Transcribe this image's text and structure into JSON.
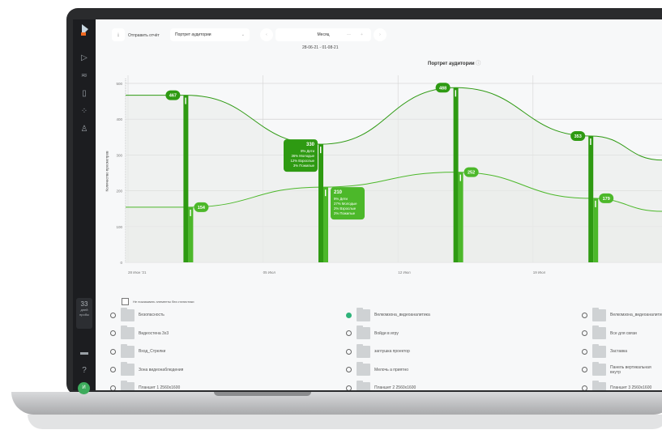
{
  "sidebar": {
    "icons": [
      "logo-icon",
      "play-icon",
      "filter-icon",
      "file-icon",
      "loader-icon",
      "user-icon",
      "monitor-icon",
      "help-icon"
    ],
    "trial_days": "33",
    "trial_label_1": "дней",
    "trial_label_2": "пробы",
    "avatar": "И"
  },
  "toolbar": {
    "send_report": "Отправить отчёт",
    "report_select": "Портрет аудитории",
    "period": "Месяц",
    "date_range": "28-06-21 - 01-08-21"
  },
  "chart_data": {
    "type": "line",
    "title": "Портрет аудитории",
    "ylabel": "Количество просмотров",
    "xlabel": "",
    "ylim": [
      0,
      500
    ],
    "yticks": [
      "0",
      "100",
      "200",
      "300",
      "400",
      "500"
    ],
    "xticks": [
      {
        "date": "2021-06-28",
        "label": "28 Июн '21"
      },
      {
        "date": "2021-07-05",
        "label": "05 Июл"
      },
      {
        "date": "2021-07-12",
        "label": "12 Июл"
      },
      {
        "date": "2021-07-19",
        "label": "19 Июл"
      }
    ],
    "grid": true,
    "series": [
      {
        "color": "#2e9a12",
        "x": [
          "2021-07-01",
          "2021-07-08",
          "2021-07-15",
          "2021-07-22"
        ],
        "values": [
          467,
          330,
          488,
          353
        ]
      },
      {
        "color": "#4cb82a",
        "x": [
          "2021-07-01",
          "2021-07-08",
          "2021-07-15",
          "2021-07-22"
        ],
        "values": [
          154,
          210,
          252,
          179
        ]
      }
    ],
    "tooltips": [
      {
        "series": 0,
        "point": 1,
        "value": "330",
        "lines": [
          "8% Дети",
          "36% Молодые",
          "12% Взрослые",
          "3% Пожилые"
        ]
      },
      {
        "series": 1,
        "point": 1,
        "value": "210",
        "lines": [
          "9% Дети",
          "27% Молодые",
          "2% Взрослые",
          "2% Пожилые"
        ]
      }
    ]
  },
  "filter": {
    "hide_empty_label": "Не показывать элементы без статистики",
    "checked": false
  },
  "items": [
    {
      "label": "Безопасность",
      "selected": false
    },
    {
      "label": "Велкомзона_видеоаналитика",
      "selected": true
    },
    {
      "label": "Велкомзона_видеоаналитика",
      "selected": false
    },
    {
      "label": "Видеостена 3х3",
      "selected": false
    },
    {
      "label": "Войди в игру",
      "selected": false
    },
    {
      "label": "Все для связи",
      "selected": false
    },
    {
      "label": "Вход_Стрелки",
      "selected": false
    },
    {
      "label": "заглушка проектор",
      "selected": false
    },
    {
      "label": "Заставка",
      "selected": false
    },
    {
      "label": "Зона видеонаблюдения",
      "selected": false
    },
    {
      "label": "Мелочь а приятно",
      "selected": false
    },
    {
      "label": "Панель вертикальная внутр",
      "selected": false
    },
    {
      "label": "Планшет 1 2560х1600",
      "selected": false
    },
    {
      "label": "Планшет 2 2560х1600",
      "selected": false
    },
    {
      "label": "Планшет 3 2560х1600",
      "selected": false
    }
  ]
}
